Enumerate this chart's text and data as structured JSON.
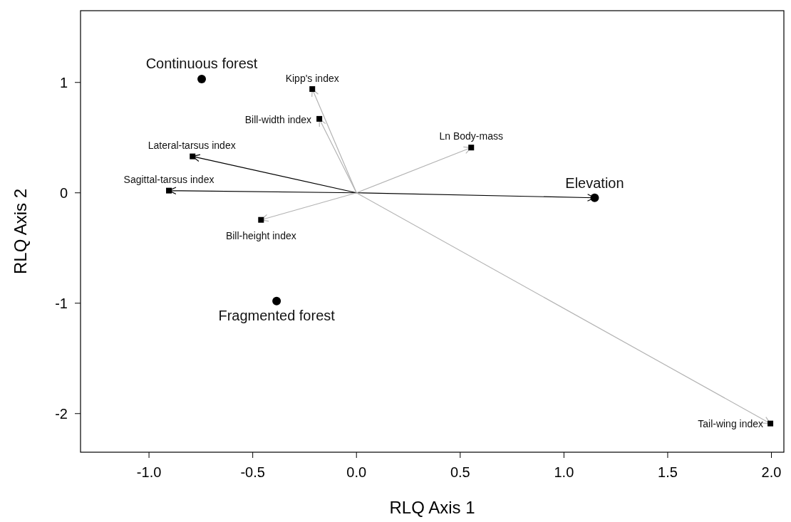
{
  "chart_data": {
    "type": "scatter",
    "xlabel": "RLQ Axis 1",
    "ylabel": "RLQ Axis 2",
    "xlim": [
      -1.33,
      2.06
    ],
    "ylim": [
      -2.35,
      1.65
    ],
    "xticks": [
      {
        "value": -1,
        "label": "-1.0"
      },
      {
        "value": -0.5,
        "label": "-0.5"
      },
      {
        "value": 0,
        "label": "0.0"
      },
      {
        "value": 0.5,
        "label": "0.5"
      },
      {
        "value": 1,
        "label": "1.0"
      },
      {
        "value": 1.5,
        "label": "1.5"
      },
      {
        "value": 2,
        "label": "2.0"
      }
    ],
    "yticks": [
      -2,
      -1,
      0,
      1
    ],
    "grid": false,
    "series": [
      {
        "color": "#000000",
        "marker": "circle",
        "x": [
          -0.746,
          -0.385,
          1.148
        ],
        "values": [
          1.03,
          -0.98,
          -0.045
        ]
      },
      {
        "color": "#000000",
        "marker": "square",
        "x": [
          -0.213,
          -0.179,
          0.553,
          -0.79,
          -0.904,
          -0.46,
          1.995
        ],
        "values": [
          0.94,
          0.67,
          0.41,
          0.33,
          0.02,
          -0.245,
          -2.09
        ]
      }
    ],
    "annotations": [
      {
        "text": "Continuous forest",
        "x": -0.746,
        "y": 1.03
      },
      {
        "text": "Fragmented forest",
        "x": -0.385,
        "y": -0.98
      },
      {
        "text": "Elevation",
        "x": 1.148,
        "y": -0.045
      },
      {
        "text": "Kipp's index",
        "x": -0.213,
        "y": 0.94
      },
      {
        "text": "Bill-width index",
        "x": -0.179,
        "y": 0.67
      },
      {
        "text": "Ln Body-mass",
        "x": 0.553,
        "y": 0.41
      },
      {
        "text": "Lateral-tarsus index",
        "x": -0.79,
        "y": 0.33
      },
      {
        "text": "Sagittal-tarsus index",
        "x": -0.904,
        "y": 0.02
      },
      {
        "text": "Bill-height index",
        "x": -0.46,
        "y": -0.245
      },
      {
        "text": "Tail-wing index",
        "x": 1.995,
        "y": -2.09
      }
    ]
  }
}
